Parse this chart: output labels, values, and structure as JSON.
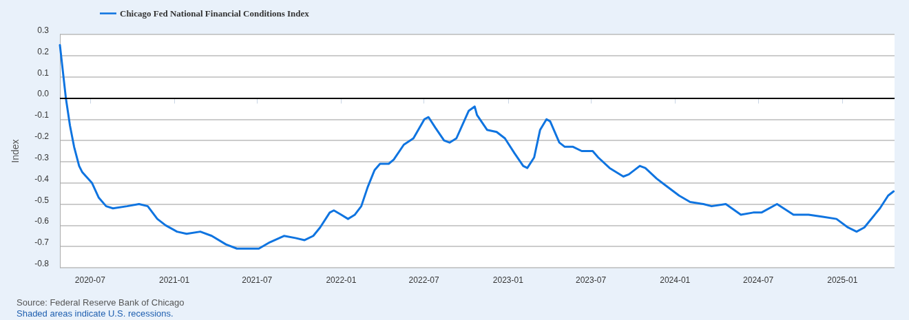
{
  "chart_data": {
    "type": "line",
    "ylabel": "Index",
    "annotations": [
      "Source: Federal Reserve Bank of Chicago",
      "Shaded areas indicate U.S. recessions."
    ],
    "x": [
      "2020-04-26",
      "2020-05-09",
      "2020-05-18",
      "2020-05-27",
      "2020-06-07",
      "2020-06-14",
      "2020-07-05",
      "2020-07-20",
      "2020-08-05",
      "2020-08-20",
      "2020-09-20",
      "2020-10-16",
      "2020-11-04",
      "2020-11-25",
      "2020-12-13",
      "2021-01-07",
      "2021-01-28",
      "2021-02-27",
      "2021-03-24",
      "2021-04-24",
      "2021-05-18",
      "2021-06-14",
      "2021-07-05",
      "2021-07-29",
      "2021-08-29",
      "2021-09-23",
      "2021-10-13",
      "2021-11-01",
      "2021-11-16",
      "2021-12-07",
      "2021-12-16",
      "2022-01-01",
      "2022-01-16",
      "2022-01-31",
      "2022-02-14",
      "2022-02-28",
      "2022-03-15",
      "2022-03-27",
      "2022-04-15",
      "2022-04-26",
      "2022-05-18",
      "2022-06-08",
      "2022-07-02",
      "2022-07-11",
      "2022-07-26",
      "2022-08-14",
      "2022-08-26",
      "2022-09-10",
      "2022-10-07",
      "2022-10-20",
      "2022-10-25",
      "2022-11-16",
      "2022-12-07",
      "2022-12-25",
      "2023-01-15",
      "2023-02-03",
      "2023-02-12",
      "2023-02-27",
      "2023-03-12",
      "2023-03-26",
      "2023-04-03",
      "2023-04-23",
      "2023-05-05",
      "2023-05-23",
      "2023-06-11",
      "2023-07-05",
      "2023-07-17",
      "2023-08-11",
      "2023-09-10",
      "2023-09-22",
      "2023-10-16",
      "2023-10-28",
      "2023-11-22",
      "2023-12-10",
      "2024-01-10",
      "2024-02-03",
      "2024-03-03",
      "2024-03-21",
      "2024-04-21",
      "2024-05-24",
      "2024-06-20",
      "2024-07-08",
      "2024-08-11",
      "2024-09-16",
      "2024-10-19",
      "2024-11-19",
      "2024-12-19",
      "2025-01-13",
      "2025-02-01",
      "2025-02-18",
      "2025-03-24",
      "2025-04-11",
      "2025-04-23"
    ],
    "series": [
      {
        "name": "Chicago Fed National Financial Conditions Index",
        "color": "#0f74e0",
        "values": [
          0.25,
          0.0,
          -0.13,
          -0.23,
          -0.32,
          -0.35,
          -0.4,
          -0.47,
          -0.51,
          -0.52,
          -0.51,
          -0.5,
          -0.51,
          -0.57,
          -0.6,
          -0.63,
          -0.64,
          -0.63,
          -0.65,
          -0.69,
          -0.71,
          -0.71,
          -0.71,
          -0.68,
          -0.65,
          -0.66,
          -0.67,
          -0.65,
          -0.61,
          -0.54,
          -0.53,
          -0.55,
          -0.57,
          -0.55,
          -0.51,
          -0.42,
          -0.34,
          -0.31,
          -0.31,
          -0.29,
          -0.22,
          -0.19,
          -0.1,
          -0.09,
          -0.14,
          -0.2,
          -0.21,
          -0.19,
          -0.06,
          -0.04,
          -0.08,
          -0.15,
          -0.16,
          -0.19,
          -0.26,
          -0.32,
          -0.33,
          -0.28,
          -0.15,
          -0.1,
          -0.11,
          -0.21,
          -0.23,
          -0.23,
          -0.25,
          -0.25,
          -0.28,
          -0.33,
          -0.37,
          -0.36,
          -0.32,
          -0.33,
          -0.38,
          -0.41,
          -0.46,
          -0.49,
          -0.5,
          -0.51,
          -0.5,
          -0.55,
          -0.54,
          -0.54,
          -0.5,
          -0.55,
          -0.55,
          -0.56,
          -0.57,
          -0.61,
          -0.63,
          -0.61,
          -0.52,
          -0.46,
          -0.44
        ]
      }
    ],
    "xlim": [
      "2020-04-26",
      "2025-04-25"
    ],
    "xticks": [
      "2020-07",
      "2021-01",
      "2021-07",
      "2022-01",
      "2022-07",
      "2023-01",
      "2023-07",
      "2024-01",
      "2024-07",
      "2025-01"
    ],
    "ylim": [
      -0.8,
      0.3
    ],
    "yticks": [
      -0.8,
      -0.7,
      -0.6,
      -0.5,
      -0.4,
      -0.3,
      -0.2,
      -0.1,
      {
        "value": 0,
        "label": "0.0"
      },
      0.1,
      0.2,
      0.3
    ],
    "ref_lines": [
      {
        "axis": "y",
        "value": 0,
        "color": "#000000"
      }
    ],
    "grid": "y",
    "legend": "top left",
    "marker": "none",
    "line_style": "solid"
  }
}
